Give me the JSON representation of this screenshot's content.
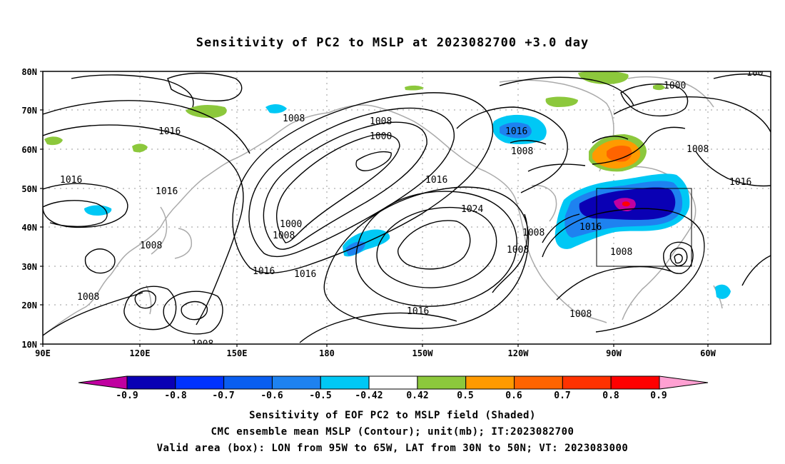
{
  "title": "Sensitivity of PC2 to MSLP at 2023082700 +3.0 day",
  "map": {
    "lat_labels": [
      "80N",
      "70N",
      "60N",
      "50N",
      "40N",
      "30N",
      "20N",
      "10N"
    ],
    "lon_labels": [
      "90E",
      "120E",
      "150E",
      "180",
      "150W",
      "120W",
      "90W",
      "60W"
    ],
    "contour_labels": [
      "1016",
      "1008",
      "1008",
      "1000",
      "1016",
      "1016",
      "1016",
      "1016",
      "1016",
      "1008",
      "1000",
      "1008",
      "1016",
      "1024",
      "1016",
      "1008",
      "1016",
      "1008",
      "1008",
      "1008",
      "1008",
      "1008",
      "1000",
      "1008",
      "1016",
      "1008",
      "100"
    ],
    "valid_box": {
      "lon_from": "95W",
      "lon_to": "65W",
      "lat_from": "30N",
      "lat_to": "50N"
    }
  },
  "colorbar": {
    "labels": [
      "-0.9",
      "-0.8",
      "-0.7",
      "-0.6",
      "-0.5",
      "-0.42",
      "0.42",
      "0.5",
      "0.6",
      "0.7",
      "0.8",
      "0.9"
    ],
    "colors": [
      "#c000a0",
      "#0a00b4",
      "#0032ff",
      "#0a5ef0",
      "#1e82f0",
      "#00c8f5",
      "#ffffff",
      "#8cc83c",
      "#ff9a00",
      "#ff6400",
      "#ff3200",
      "#ff0000",
      "#ffa0d2"
    ]
  },
  "captions": [
    "Sensitivity of EOF PC2 to MSLP field (Shaded)",
    "CMC ensemble mean MSLP (Contour); unit(mb); IT:2023082700",
    "Valid area (box): LON from 95W to 65W, LAT from 30N to 50N; VT: 2023083000"
  ]
}
